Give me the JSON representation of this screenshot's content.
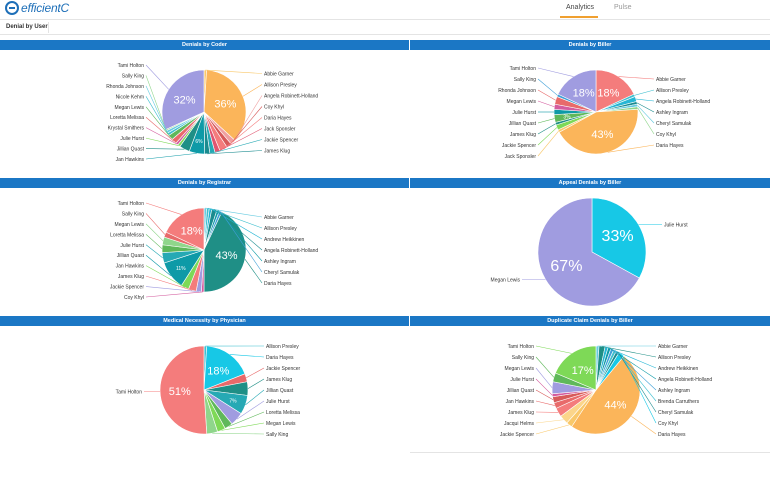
{
  "app": {
    "brand": "efficientC"
  },
  "tabs": [
    {
      "label": "Analytics",
      "active": true
    },
    {
      "label": "Pulse",
      "active": false
    }
  ],
  "subheader": {
    "title": "Denial by User"
  },
  "colors": {
    "header": "#1b77c5",
    "tab_accent": "#f0a030"
  },
  "chart_data": [
    {
      "type": "pie",
      "title": "Denials by Coder",
      "slices": [
        {
          "label": "Abbie Garner",
          "value": 1,
          "color": "#f9c86a"
        },
        {
          "label": "Allison Presley",
          "value": 36,
          "color": "#fbb55a",
          "display": "36%"
        },
        {
          "label": "Angela Robinett-Holland",
          "value": 2,
          "color": "#f0a0a0"
        },
        {
          "label": "Coy Khyl",
          "value": 2,
          "color": "#d75a5a"
        },
        {
          "label": "Daria Hayes",
          "value": 3,
          "color": "#f47c7c"
        },
        {
          "label": "Jack Sponsler",
          "value": 2,
          "color": "#e05570"
        },
        {
          "label": "Jackie Spencer",
          "value": 2,
          "color": "#26a9b4"
        },
        {
          "label": "James Klug",
          "value": 2,
          "color": "#1a8b8f"
        },
        {
          "label": "Jan Hawkins",
          "value": 6,
          "color": "#0e9aa7",
          "display": "6%"
        },
        {
          "label": "Jillian Quast",
          "value": 4,
          "color": "#1f8f86"
        },
        {
          "label": "Julie Hurst",
          "value": 1,
          "color": "#7ed957"
        },
        {
          "label": "Krystal Smithers",
          "value": 1,
          "color": "#d45c9e"
        },
        {
          "label": "Loretta Melissa",
          "value": 2,
          "color": "#e86a6a"
        },
        {
          "label": "Megan Lewis",
          "value": 2,
          "color": "#5fb85a"
        },
        {
          "label": "Nicole Kehm",
          "value": 1,
          "color": "#3fbfcf"
        },
        {
          "label": "Rhonda Johnson",
          "value": 1,
          "color": "#66cbe0"
        },
        {
          "label": "Sally King",
          "value": 0.5,
          "color": "#8fd68b"
        },
        {
          "label": "Tami Holton",
          "value": 32,
          "color": "#a09ce0",
          "display": "32%"
        }
      ]
    },
    {
      "type": "pie",
      "title": "Denials by Biller",
      "slices": [
        {
          "label": "Abbie Garner",
          "value": 18,
          "color": "#f47c7c",
          "display": "18%"
        },
        {
          "label": "Allison Presley",
          "value": 1,
          "color": "#3fbfcf"
        },
        {
          "label": "Angela Robinett-Holland",
          "value": 2,
          "color": "#26b6d4"
        },
        {
          "label": "Ashley Ingram",
          "value": 1,
          "color": "#1a8b8f"
        },
        {
          "label": "Cheryl Samulak",
          "value": 1,
          "color": "#66cbe0"
        },
        {
          "label": "Coy Khyl",
          "value": 1,
          "color": "#8fd68b"
        },
        {
          "label": "Daria Hayes",
          "value": 43,
          "color": "#fbb55a",
          "display": "43%"
        },
        {
          "label": "Jack Sponsler",
          "value": 1,
          "color": "#f9c86a"
        },
        {
          "label": "Jackie Spencer",
          "value": 2,
          "color": "#7ed957"
        },
        {
          "label": "James Klug",
          "value": 1,
          "color": "#1f8f86"
        },
        {
          "label": "Jillian Quast",
          "value": 3,
          "color": "#5fb85a",
          "display": "3%"
        },
        {
          "label": "Julie Hurst",
          "value": 2,
          "color": "#0e9aa7"
        },
        {
          "label": "Megan Lewis",
          "value": 2,
          "color": "#d45c9e"
        },
        {
          "label": "Rhonda Johnson",
          "value": 3,
          "color": "#e86a6a"
        },
        {
          "label": "Sally King",
          "value": 1,
          "color": "#3fa0d8"
        },
        {
          "label": "Tami Holton",
          "value": 18,
          "color": "#a09ce0",
          "display": "18%"
        }
      ]
    },
    {
      "type": "pie",
      "title": "Denials by Registrar",
      "slices": [
        {
          "label": "Abbie Garner",
          "value": 1,
          "color": "#66cbe0"
        },
        {
          "label": "Allison Presley",
          "value": 1,
          "color": "#3fbfcf"
        },
        {
          "label": "Andrew Heikkinen",
          "value": 1,
          "color": "#26b6d4"
        },
        {
          "label": "Angela Robinett-Holland",
          "value": 2,
          "color": "#1a8b8f"
        },
        {
          "label": "Ashley Ingram",
          "value": 1,
          "color": "#0e9aa7"
        },
        {
          "label": "Cheryl Samulak",
          "value": 1,
          "color": "#3fa0d8"
        },
        {
          "label": "Daria Hayes",
          "value": 43,
          "color": "#1f8f86",
          "display": "43%"
        },
        {
          "label": "Coy Khyl",
          "value": 1,
          "color": "#d45c9e"
        },
        {
          "label": "Jackie Spencer",
          "value": 2,
          "color": "#a09ce0"
        },
        {
          "label": "James Klug",
          "value": 3,
          "color": "#f47c7c"
        },
        {
          "label": "Jan Hawkins",
          "value": 3,
          "color": "#7ed957"
        },
        {
          "label": "Jillian Quast",
          "value": 11,
          "color": "#0e9aa7",
          "display": "11%"
        },
        {
          "label": "Julie Hurst",
          "value": 4,
          "color": "#26a9b4"
        },
        {
          "label": "Loretta Melissa",
          "value": 3,
          "color": "#5fb85a"
        },
        {
          "label": "Megan Lewis",
          "value": 3,
          "color": "#8fd68b"
        },
        {
          "label": "Sally King",
          "value": 2,
          "color": "#e86a6a"
        },
        {
          "label": "Tami Holton",
          "value": 18,
          "color": "#f47c7c",
          "display": "18%"
        }
      ]
    },
    {
      "type": "pie",
      "title": "Appeal Denials by Biller",
      "slices": [
        {
          "label": "Julie Hurst",
          "value": 33,
          "color": "#17c8e6",
          "display": "33%"
        },
        {
          "label": "Megan Lewis",
          "value": 67,
          "color": "#a09ce0",
          "display": "67%"
        }
      ]
    },
    {
      "type": "pie",
      "title": "Medical Necessity by Physician",
      "slices": [
        {
          "label": "Allison Presley",
          "value": 1,
          "color": "#3fbfcf"
        },
        {
          "label": "Daria Hayes",
          "value": 18,
          "color": "#17c8e6",
          "display": "18%"
        },
        {
          "label": "Jackie Spencer",
          "value": 3,
          "color": "#e86a6a"
        },
        {
          "label": "James Klug",
          "value": 5,
          "color": "#1f8f86"
        },
        {
          "label": "Jillian Quast",
          "value": 7,
          "color": "#26a9b4",
          "display": "7%"
        },
        {
          "label": "Julie Hurst",
          "value": 5,
          "color": "#a09ce0"
        },
        {
          "label": "Loretta Melissa",
          "value": 3,
          "color": "#5fb85a"
        },
        {
          "label": "Megan Lewis",
          "value": 3,
          "color": "#7ed957"
        },
        {
          "label": "Sally King",
          "value": 4,
          "color": "#8fd68b"
        },
        {
          "label": "Tami Holton",
          "value": 51,
          "color": "#f47c7c",
          "display": "51%"
        }
      ]
    },
    {
      "type": "pie",
      "title": "Duplicate Claim Denials by Biller",
      "slices": [
        {
          "label": "Abbie Garner",
          "value": 1,
          "color": "#66cbe0"
        },
        {
          "label": "Allison Presley",
          "value": 2,
          "color": "#1f8f86"
        },
        {
          "label": "Andrew Heikkinen",
          "value": 1,
          "color": "#26b6d4"
        },
        {
          "label": "Angela Robinett-Holland",
          "value": 1,
          "color": "#0e9aa7"
        },
        {
          "label": "Ashley Ingram",
          "value": 1,
          "color": "#3fa0d8"
        },
        {
          "label": "Brenda Carruthers",
          "value": 1,
          "color": "#3fbfcf"
        },
        {
          "label": "Cheryl Samulak",
          "value": 1,
          "color": "#1a8b8f"
        },
        {
          "label": "Coy Khyl",
          "value": 2,
          "color": "#17c8e6"
        },
        {
          "label": "Daria Hayes",
          "value": 44,
          "color": "#fbb55a",
          "display": "44%"
        },
        {
          "label": "Jackie Spencer",
          "value": 2,
          "color": "#f9c86a"
        },
        {
          "label": "Jacqui Helms",
          "value": 3,
          "color": "#fbd58a"
        },
        {
          "label": "James Klug",
          "value": 3,
          "color": "#f47c7c"
        },
        {
          "label": "Jan Hawkins",
          "value": 2,
          "color": "#e86a6a"
        },
        {
          "label": "Jillian Quast",
          "value": 2,
          "color": "#d75a5a"
        },
        {
          "label": "Julie Hurst",
          "value": 1,
          "color": "#d45c9e"
        },
        {
          "label": "Megan Lewis",
          "value": 4,
          "color": "#a09ce0"
        },
        {
          "label": "Sally King",
          "value": 3,
          "color": "#5fb85a"
        },
        {
          "label": "Tami Holton",
          "value": 17,
          "color": "#7ed957",
          "display": "17%"
        }
      ]
    }
  ]
}
